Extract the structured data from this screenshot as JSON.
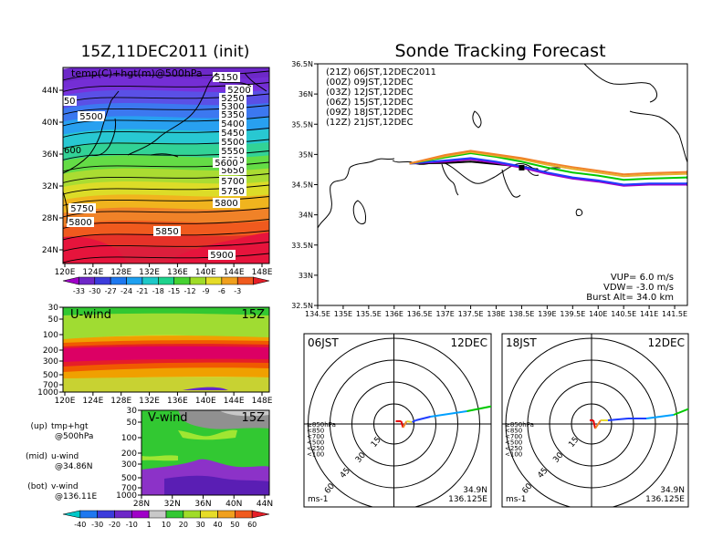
{
  "left_title": "15Z,11DEC2011 (init)",
  "right_title": "Sonde Tracking Forecast",
  "top_map": {
    "label": "temp(C)+hgt(m)@500hPa",
    "x_ticks": [
      "120E",
      "124E",
      "128E",
      "132E",
      "136E",
      "140E",
      "144E",
      "148E"
    ],
    "y_ticks": [
      "24N",
      "28N",
      "32N",
      "36N",
      "40N",
      "44N"
    ],
    "contour_labels": [
      "5150",
      "5200",
      "5250",
      "5300",
      "5350",
      "5400",
      "5450",
      "5500",
      "5550",
      "5600",
      "5650",
      "5700",
      "5750",
      "5800",
      "5850",
      "5900",
      "5500",
      "5600",
      "5750",
      "5800",
      "450"
    ],
    "colorbar_ticks": [
      "-33",
      "-30",
      "-27",
      "-24",
      "-21",
      "-18",
      "-15",
      "-12",
      "-9",
      "-6",
      "-3"
    ]
  },
  "u_wind": {
    "label": "U-wind",
    "time": "15Z",
    "y_ticks": [
      "30",
      "50",
      "100",
      "200",
      "300",
      "500",
      "700",
      "1000"
    ],
    "x_ticks": [
      "120E",
      "124E",
      "128E",
      "132E",
      "136E",
      "140E",
      "144E",
      "148E"
    ]
  },
  "v_wind": {
    "label": "V-wind",
    "time": "15Z",
    "y_ticks": [
      "30",
      "50",
      "100",
      "200",
      "300",
      "500",
      "700",
      "1000"
    ],
    "x_ticks": [
      "28N",
      "32N",
      "36N",
      "40N",
      "44N"
    ]
  },
  "wind_colorbar_ticks": [
    "-40",
    "-30",
    "-20",
    "-10",
    "1",
    "10",
    "20",
    "30",
    "40",
    "50",
    "60"
  ],
  "notes": [
    {
      "k": "(up)",
      "v1": "tmp+hgt",
      "v2": "@500hPa"
    },
    {
      "k": "(mid)",
      "v1": "u-wind",
      "v2": "@34.86N"
    },
    {
      "k": "(bot)",
      "v1": "v-wind",
      "v2": "@136.11E"
    }
  ],
  "track_panel": {
    "x_ticks": [
      "134.5E",
      "135E",
      "135.5E",
      "136E",
      "136.5E",
      "137E",
      "137.5E",
      "138E",
      "138.5E",
      "139E",
      "139.5E",
      "140E",
      "140.5E",
      "141E",
      "141.5E"
    ],
    "y_ticks": [
      "32.5N",
      "33N",
      "33.5N",
      "34N",
      "34.5N",
      "35N",
      "35.5N",
      "36N",
      "36.5N"
    ],
    "legend": [
      {
        "text": "(21Z) 06JST,12DEC2011",
        "color": "#000000"
      },
      {
        "text": "(00Z) 09JST,12DEC",
        "color": "#a000c8"
      },
      {
        "text": "(03Z) 12JST,12DEC",
        "color": "#1e3cff"
      },
      {
        "text": "(06Z) 15JST,12DEC",
        "color": "#00c800"
      },
      {
        "text": "(09Z) 18JST,12DEC",
        "color": "#e6af2d"
      },
      {
        "text": "(12Z) 21JST,12DEC",
        "color": "#f08228"
      }
    ],
    "vup": "VUP= 6.0 m/s",
    "vdw": "VDW= -3.0 m/s",
    "burst": "Burst Alt= 34.0 km"
  },
  "polar_left": {
    "time": "06JST",
    "date": "12DEC",
    "ring_labels": [
      "15",
      "30",
      "45",
      "60"
    ],
    "legend": [
      {
        "text": "≥850hPa",
        "color": "#e60000"
      },
      {
        "text": "<850",
        "color": "#f08228"
      },
      {
        "text": "<700",
        "color": "#e6dc32"
      },
      {
        "text": "<500",
        "color": "#00c800"
      },
      {
        "text": "<250",
        "color": "#00a0ff"
      },
      {
        "text": "<100",
        "color": "#1e3cff"
      }
    ],
    "units": "ms-1",
    "lat": "34.9N",
    "lon": "136.125E"
  },
  "polar_right": {
    "time": "18JST",
    "date": "12DEC",
    "ring_labels": [
      "15",
      "30",
      "45",
      "60"
    ],
    "units": "ms-1",
    "lat": "34.9N",
    "lon": "136.125E"
  },
  "chart_data": [
    {
      "type": "line",
      "title": "Sonde Tracking Forecast",
      "xlim": [
        134.5,
        141.75
      ],
      "ylim": [
        32.5,
        36.5
      ],
      "series": [
        {
          "name": "(21Z) 06JST,12DEC2011",
          "color": "#000000",
          "x": [
            136.3,
            137.0,
            137.5,
            138.0,
            138.5,
            138.8
          ],
          "y": [
            34.85,
            34.86,
            34.88,
            34.84,
            34.8,
            34.75
          ]
        },
        {
          "name": "(00Z) 09JST,12DEC",
          "color": "#a000c8",
          "x": [
            136.3,
            137.0,
            137.5,
            138.0,
            138.5,
            139.0,
            139.5,
            140.0,
            140.5,
            141.0,
            141.75
          ],
          "y": [
            34.85,
            34.88,
            34.92,
            34.86,
            34.78,
            34.68,
            34.6,
            34.55,
            34.48,
            34.5,
            34.5
          ]
        },
        {
          "name": "(03Z) 12JST,12DEC",
          "color": "#1e3cff",
          "x": [
            136.3,
            137.0,
            137.5,
            138.0,
            138.5,
            139.0,
            139.5,
            140.0,
            140.5,
            141.0,
            141.75
          ],
          "y": [
            34.85,
            34.9,
            34.94,
            34.88,
            34.8,
            34.7,
            34.62,
            34.57,
            34.5,
            34.52,
            34.52
          ]
        },
        {
          "name": "(06Z) 15JST,12DEC",
          "color": "#00c800",
          "x": [
            136.3,
            137.0,
            137.5,
            138.0,
            138.5,
            139.0,
            139.5,
            140.0,
            140.5,
            141.0,
            141.75
          ],
          "y": [
            34.85,
            34.95,
            35.02,
            34.96,
            34.88,
            34.78,
            34.7,
            34.65,
            34.58,
            34.6,
            34.62
          ]
        },
        {
          "name": "(09Z) 18JST,12DEC",
          "color": "#e6af2d",
          "x": [
            136.3,
            137.0,
            137.5,
            138.0,
            138.5,
            139.0,
            139.5,
            140.0,
            140.5,
            141.0,
            141.75
          ],
          "y": [
            34.85,
            34.97,
            35.04,
            34.98,
            34.92,
            34.83,
            34.76,
            34.7,
            34.64,
            34.66,
            34.68
          ]
        },
        {
          "name": "(12Z) 21JST,12DEC",
          "color": "#f08228",
          "x": [
            136.3,
            137.0,
            137.5,
            138.0,
            138.5,
            139.0,
            139.5,
            140.0,
            140.5,
            141.0,
            141.75
          ],
          "y": [
            34.85,
            34.99,
            35.06,
            35.0,
            34.94,
            34.86,
            34.79,
            34.73,
            34.67,
            34.69,
            34.71
          ]
        }
      ]
    }
  ]
}
